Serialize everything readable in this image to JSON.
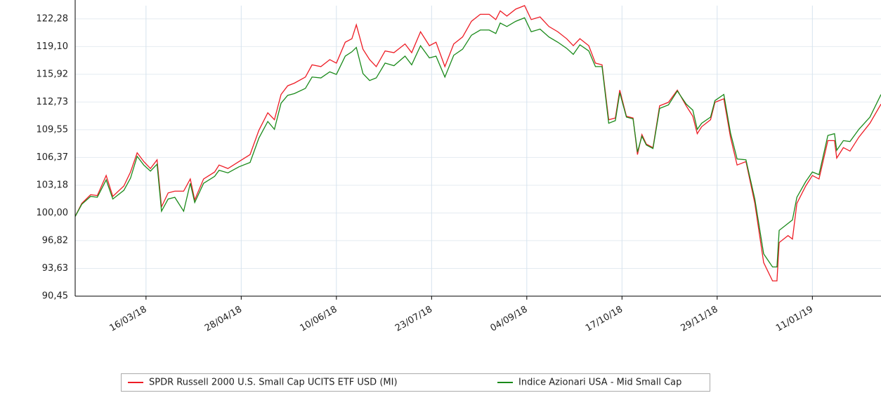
{
  "chart_data": {
    "type": "line",
    "x": [
      "2018-02-12",
      "2018-02-15",
      "2018-02-19",
      "2018-02-22",
      "2018-02-26",
      "2018-03-01",
      "2018-03-06",
      "2018-03-09",
      "2018-03-12",
      "2018-03-15",
      "2018-03-18",
      "2018-03-21",
      "2018-03-23",
      "2018-03-26",
      "2018-03-29",
      "2018-04-02",
      "2018-04-05",
      "2018-04-07",
      "2018-04-11",
      "2018-04-16",
      "2018-04-18",
      "2018-04-22",
      "2018-04-27",
      "2018-05-02",
      "2018-05-06",
      "2018-05-10",
      "2018-05-13",
      "2018-05-16",
      "2018-05-19",
      "2018-05-22",
      "2018-05-27",
      "2018-05-30",
      "2018-06-03",
      "2018-06-07",
      "2018-06-10",
      "2018-06-14",
      "2018-06-17",
      "2018-06-19",
      "2018-06-22",
      "2018-06-25",
      "2018-06-28",
      "2018-07-02",
      "2018-07-06",
      "2018-07-11",
      "2018-07-14",
      "2018-07-18",
      "2018-07-22",
      "2018-07-25",
      "2018-07-29",
      "2018-08-02",
      "2018-08-06",
      "2018-08-10",
      "2018-08-14",
      "2018-08-18",
      "2018-08-21",
      "2018-08-23",
      "2018-08-26",
      "2018-08-30",
      "2018-09-03",
      "2018-09-06",
      "2018-09-10",
      "2018-09-14",
      "2018-09-18",
      "2018-09-22",
      "2018-09-25",
      "2018-09-28",
      "2018-10-02",
      "2018-10-05",
      "2018-10-08",
      "2018-10-11",
      "2018-10-14",
      "2018-10-16",
      "2018-10-19",
      "2018-10-22",
      "2018-10-24",
      "2018-10-26",
      "2018-10-28",
      "2018-10-31",
      "2018-11-03",
      "2018-11-07",
      "2018-11-11",
      "2018-11-15",
      "2018-11-18",
      "2018-11-20",
      "2018-11-22",
      "2018-11-26",
      "2018-11-28",
      "2018-12-02",
      "2018-12-05",
      "2018-12-08",
      "2018-12-12",
      "2018-12-16",
      "2018-12-20",
      "2018-12-24",
      "2018-12-26",
      "2018-12-27",
      "2018-12-31",
      "2019-01-02",
      "2019-01-04",
      "2019-01-08",
      "2019-01-11",
      "2019-01-14",
      "2019-01-18",
      "2019-01-21",
      "2019-01-22",
      "2019-01-25",
      "2019-01-28",
      "2019-02-01",
      "2019-02-06",
      "2019-02-11"
    ],
    "series": [
      {
        "name": "SPDR Russell 2000 U.S. Small Cap UCITS ETF USD (MI)",
        "color": "#ee1c25",
        "values": [
          99.6,
          101.1,
          102.1,
          102.0,
          104.3,
          101.9,
          103.1,
          104.7,
          106.9,
          105.9,
          105.1,
          106.1,
          100.7,
          102.3,
          102.5,
          102.5,
          103.9,
          101.5,
          103.9,
          104.7,
          105.5,
          105.1,
          105.9,
          106.7,
          109.5,
          111.5,
          110.7,
          113.6,
          114.6,
          114.9,
          115.6,
          117.0,
          116.8,
          117.6,
          117.2,
          119.6,
          120.0,
          121.6,
          118.8,
          117.6,
          116.8,
          118.6,
          118.4,
          119.4,
          118.4,
          120.8,
          119.2,
          119.6,
          116.8,
          119.4,
          120.2,
          122.0,
          122.8,
          122.8,
          122.2,
          123.2,
          122.6,
          123.4,
          123.8,
          122.2,
          122.5,
          121.4,
          120.8,
          120.0,
          119.2,
          120.0,
          119.2,
          117.2,
          117.0,
          110.7,
          110.9,
          114.1,
          111.1,
          110.9,
          106.7,
          109.0,
          107.9,
          107.5,
          112.3,
          112.7,
          114.1,
          112.3,
          111.1,
          109.1,
          109.9,
          110.7,
          112.7,
          113.1,
          108.7,
          105.5,
          105.9,
          101.1,
          94.3,
          92.2,
          92.2,
          96.6,
          97.4,
          97.0,
          101.1,
          103.1,
          104.3,
          103.9,
          108.3,
          108.3,
          106.3,
          107.5,
          107.1,
          108.7,
          110.3,
          112.5
        ]
      },
      {
        "name": "Indice Azionari USA - Mid Small Cap",
        "color": "#1a8a1a",
        "values": [
          99.6,
          101.0,
          101.9,
          101.8,
          103.8,
          101.6,
          102.6,
          104.0,
          106.5,
          105.5,
          104.8,
          105.6,
          100.2,
          101.6,
          101.8,
          100.2,
          103.4,
          101.2,
          103.4,
          104.2,
          104.9,
          104.6,
          105.3,
          105.8,
          108.6,
          110.5,
          109.6,
          112.6,
          113.5,
          113.7,
          114.3,
          115.6,
          115.5,
          116.2,
          115.9,
          118.0,
          118.5,
          119.0,
          116.0,
          115.2,
          115.5,
          117.2,
          116.9,
          118.0,
          117.0,
          119.2,
          117.8,
          118.0,
          115.6,
          118.1,
          118.8,
          120.4,
          121.0,
          121.0,
          120.6,
          121.8,
          121.4,
          122.0,
          122.4,
          120.8,
          121.1,
          120.2,
          119.6,
          118.9,
          118.2,
          119.3,
          118.6,
          116.8,
          116.8,
          110.3,
          110.6,
          113.8,
          111.0,
          110.8,
          107.0,
          108.8,
          107.8,
          107.4,
          112.0,
          112.4,
          114.0,
          112.5,
          111.8,
          109.6,
          110.3,
          111.0,
          112.9,
          113.6,
          109.2,
          106.2,
          106.1,
          101.6,
          95.3,
          93.8,
          93.8,
          98.0,
          98.8,
          99.2,
          101.8,
          103.6,
          104.7,
          104.4,
          108.9,
          109.1,
          107.2,
          108.3,
          108.2,
          109.6,
          111.0,
          113.6
        ]
      }
    ],
    "xlim": [
      "2018-02-12",
      "2019-02-11"
    ],
    "xticks": [
      {
        "value": "2018-03-16",
        "label": "16/03/18"
      },
      {
        "value": "2018-04-28",
        "label": "28/04/18"
      },
      {
        "value": "2018-06-10",
        "label": "10/06/18"
      },
      {
        "value": "2018-07-23",
        "label": "23/07/18"
      },
      {
        "value": "2018-09-04",
        "label": "04/09/18"
      },
      {
        "value": "2018-10-17",
        "label": "17/10/18"
      },
      {
        "value": "2018-11-29",
        "label": "29/11/18"
      },
      {
        "value": "2019-01-11",
        "label": "11/01/19"
      }
    ],
    "ylim": [
      90.45,
      123.8
    ],
    "yticks": [
      {
        "value": 90.45,
        "label": "90,45"
      },
      {
        "value": 93.63,
        "label": "93,63"
      },
      {
        "value": 96.82,
        "label": "96,82"
      },
      {
        "value": 100.0,
        "label": "100,00"
      },
      {
        "value": 103.18,
        "label": "103,18"
      },
      {
        "value": 106.37,
        "label": "106,37"
      },
      {
        "value": 109.55,
        "label": "109,55"
      },
      {
        "value": 112.73,
        "label": "112,73"
      },
      {
        "value": 115.92,
        "label": "115,92"
      },
      {
        "value": 119.1,
        "label": "119,10"
      },
      {
        "value": 122.28,
        "label": "122,28"
      }
    ],
    "grid": true,
    "legend": "bottom"
  }
}
